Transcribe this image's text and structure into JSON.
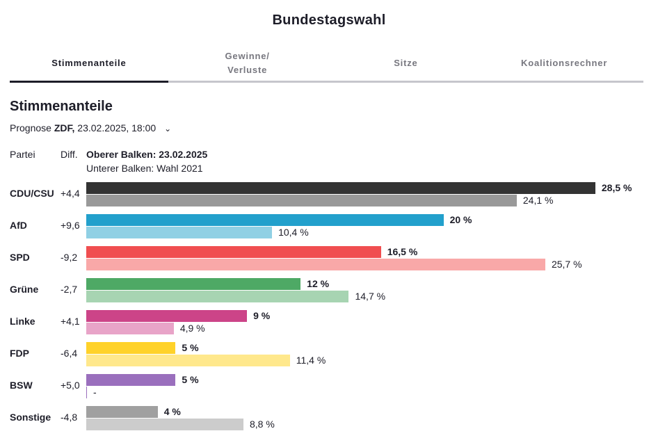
{
  "header": {
    "title": "Bundestagswahl"
  },
  "tabs": [
    {
      "label": "Stimmenanteile",
      "active": true
    },
    {
      "label": "Gewinne/\nVerluste",
      "line1": "Gewinne/",
      "line2": "Verluste"
    },
    {
      "label": "Sitze"
    },
    {
      "label": "Koalitionsrechner"
    }
  ],
  "section": {
    "title": "Stimmenanteile",
    "prognose_prefix": "Prognose",
    "source": "ZDF,",
    "date": "23.02.2025, 18:00",
    "chevron": "chevron-down-icon"
  },
  "legend": {
    "party": "Partei",
    "diff": "Diff.",
    "top": "Oberer Balken: 23.02.2025",
    "bottom": "Unterer Balken: Wahl 2021"
  },
  "chart_data": {
    "type": "bar",
    "orientation": "horizontal",
    "categories": [
      "CDU/CSU",
      "AfD",
      "SPD",
      "Grüne",
      "Linke",
      "FDP",
      "BSW",
      "Sonstige"
    ],
    "diff": [
      "+4,4",
      "+9,6",
      "-9,2",
      "-2,7",
      "+4,1",
      "-6,4",
      "+5,0",
      "-4,8"
    ],
    "series": [
      {
        "name": "Oberer Balken: 23.02.2025",
        "values": [
          28.5,
          20,
          16.5,
          12,
          9,
          5,
          5,
          4
        ],
        "labels": [
          "28,5 %",
          "20 %",
          "16,5 %",
          "12 %",
          "9 %",
          "5 %",
          "5 %",
          "4 %"
        ],
        "colors": [
          "#333333",
          "#22a0cc",
          "#f04e50",
          "#4ea965",
          "#cc4488",
          "#ffd22a",
          "#9a6fbd",
          "#a0a0a0"
        ]
      },
      {
        "name": "Unterer Balken: Wahl 2021",
        "values": [
          24.1,
          10.4,
          25.7,
          14.7,
          4.9,
          11.4,
          null,
          8.8
        ],
        "labels": [
          "24,1 %",
          "10,4 %",
          "25,7 %",
          "14,7 %",
          "4,9 %",
          "11,4 %",
          "-",
          "8,8 %"
        ],
        "colors": [
          "#999999",
          "#90d0e4",
          "#f9a8a8",
          "#a7d4b2",
          "#e8a4c8",
          "#ffe88c",
          "#9a6fbd",
          "#cccccc"
        ]
      }
    ]
  }
}
